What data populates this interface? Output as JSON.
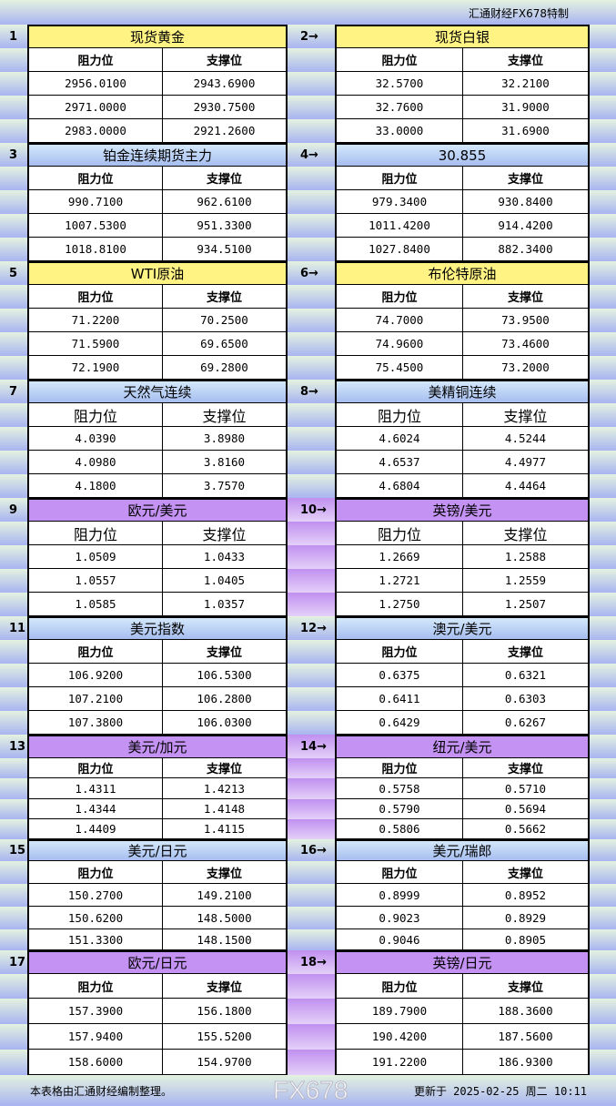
{
  "header": {
    "brand_label": "汇通财经FX678特制"
  },
  "column_headers": {
    "resistance": "阻力位",
    "support": "支撑位"
  },
  "blocks": [
    {
      "style": "yellow",
      "left": {
        "num": "1",
        "title": "现货黄金",
        "rows": [
          [
            "2956.0100",
            "2943.6900"
          ],
          [
            "2971.0000",
            "2930.7500"
          ],
          [
            "2983.0000",
            "2921.2600"
          ]
        ]
      },
      "right": {
        "num": "2→",
        "title": "现货白银",
        "rows": [
          [
            "32.5700",
            "32.2100"
          ],
          [
            "32.7600",
            "31.9000"
          ],
          [
            "33.0000",
            "31.6900"
          ]
        ]
      }
    },
    {
      "style": "blue",
      "left": {
        "num": "3",
        "title": "铂金连续期货主力",
        "rows": [
          [
            "990.7100",
            "962.6100"
          ],
          [
            "1007.5300",
            "951.3300"
          ],
          [
            "1018.8100",
            "934.5100"
          ]
        ]
      },
      "right": {
        "num": "4→",
        "title": "30.855",
        "rows": [
          [
            "979.3400",
            "930.8400"
          ],
          [
            "1011.4200",
            "914.4200"
          ],
          [
            "1027.8400",
            "882.3400"
          ]
        ]
      }
    },
    {
      "style": "yellow",
      "left": {
        "num": "5",
        "title": "WTI原油",
        "rows": [
          [
            "71.2200",
            "70.2500"
          ],
          [
            "71.5900",
            "69.6500"
          ],
          [
            "72.1900",
            "69.2800"
          ]
        ]
      },
      "right": {
        "num": "6→",
        "title": "布伦特原油",
        "rows": [
          [
            "74.7000",
            "73.9500"
          ],
          [
            "74.9600",
            "73.4600"
          ],
          [
            "75.4500",
            "73.2000"
          ]
        ]
      }
    },
    {
      "style": "blue",
      "left": {
        "num": "7",
        "title": "天然气连续",
        "rows": [
          [
            "4.0390",
            "3.8980"
          ],
          [
            "4.0980",
            "3.8160"
          ],
          [
            "4.1800",
            "3.7570"
          ]
        ]
      },
      "right": {
        "num": "8→",
        "title": "美精铜连续",
        "rows": [
          [
            "4.6024",
            "4.5244"
          ],
          [
            "4.6537",
            "4.4977"
          ],
          [
            "4.6804",
            "4.4464"
          ]
        ]
      }
    },
    {
      "style": "purple",
      "left": {
        "num": "9",
        "title": "欧元/美元",
        "rows": [
          [
            "1.0509",
            "1.0433"
          ],
          [
            "1.0557",
            "1.0405"
          ],
          [
            "1.0585",
            "1.0357"
          ]
        ]
      },
      "right": {
        "num": "10→",
        "title": "英镑/美元",
        "rows": [
          [
            "1.2669",
            "1.2588"
          ],
          [
            "1.2721",
            "1.2559"
          ],
          [
            "1.2750",
            "1.2507"
          ]
        ]
      }
    },
    {
      "style": "blue",
      "left": {
        "num": "11",
        "title": "美元指数",
        "rows": [
          [
            "106.9200",
            "106.5300"
          ],
          [
            "107.2100",
            "106.2800"
          ],
          [
            "107.3800",
            "106.0300"
          ]
        ]
      },
      "right": {
        "num": "12→",
        "title": "澳元/美元",
        "rows": [
          [
            "0.6375",
            "0.6321"
          ],
          [
            "0.6411",
            "0.6303"
          ],
          [
            "0.6429",
            "0.6267"
          ]
        ]
      }
    },
    {
      "style": "purple",
      "left": {
        "num": "13",
        "title": "美元/加元",
        "rows": [
          [
            "1.4311",
            "1.4213"
          ],
          [
            "1.4344",
            "1.4148"
          ],
          [
            "1.4409",
            "1.4115"
          ]
        ]
      },
      "right": {
        "num": "14→",
        "title": "纽元/美元",
        "rows": [
          [
            "0.5758",
            "0.5710"
          ],
          [
            "0.5790",
            "0.5694"
          ],
          [
            "0.5806",
            "0.5662"
          ]
        ]
      }
    },
    {
      "style": "blue",
      "left": {
        "num": "15",
        "title": "美元/日元",
        "rows": [
          [
            "150.2700",
            "149.2100"
          ],
          [
            "150.6200",
            "148.5000"
          ],
          [
            "151.3300",
            "148.1500"
          ]
        ]
      },
      "right": {
        "num": "16→",
        "title": "美元/瑞郎",
        "rows": [
          [
            "0.8999",
            "0.8952"
          ],
          [
            "0.9023",
            "0.8929"
          ],
          [
            "0.9046",
            "0.8905"
          ]
        ]
      }
    },
    {
      "style": "purple",
      "left": {
        "num": "17",
        "title": "欧元/日元",
        "rows": [
          [
            "157.3900",
            "156.1800"
          ],
          [
            "157.9400",
            "155.5200"
          ],
          [
            "158.6000",
            "154.9700"
          ]
        ]
      },
      "right": {
        "num": "18→",
        "title": "英镑/日元",
        "rows": [
          [
            "189.7900",
            "188.3600"
          ],
          [
            "190.4200",
            "187.5600"
          ],
          [
            "191.2200",
            "186.9300"
          ]
        ]
      }
    }
  ],
  "footer": {
    "note": "本表格由汇通财经编制整理。",
    "updated": "更新于 2025-02-25 周二 10:11"
  },
  "watermark": "FX678"
}
